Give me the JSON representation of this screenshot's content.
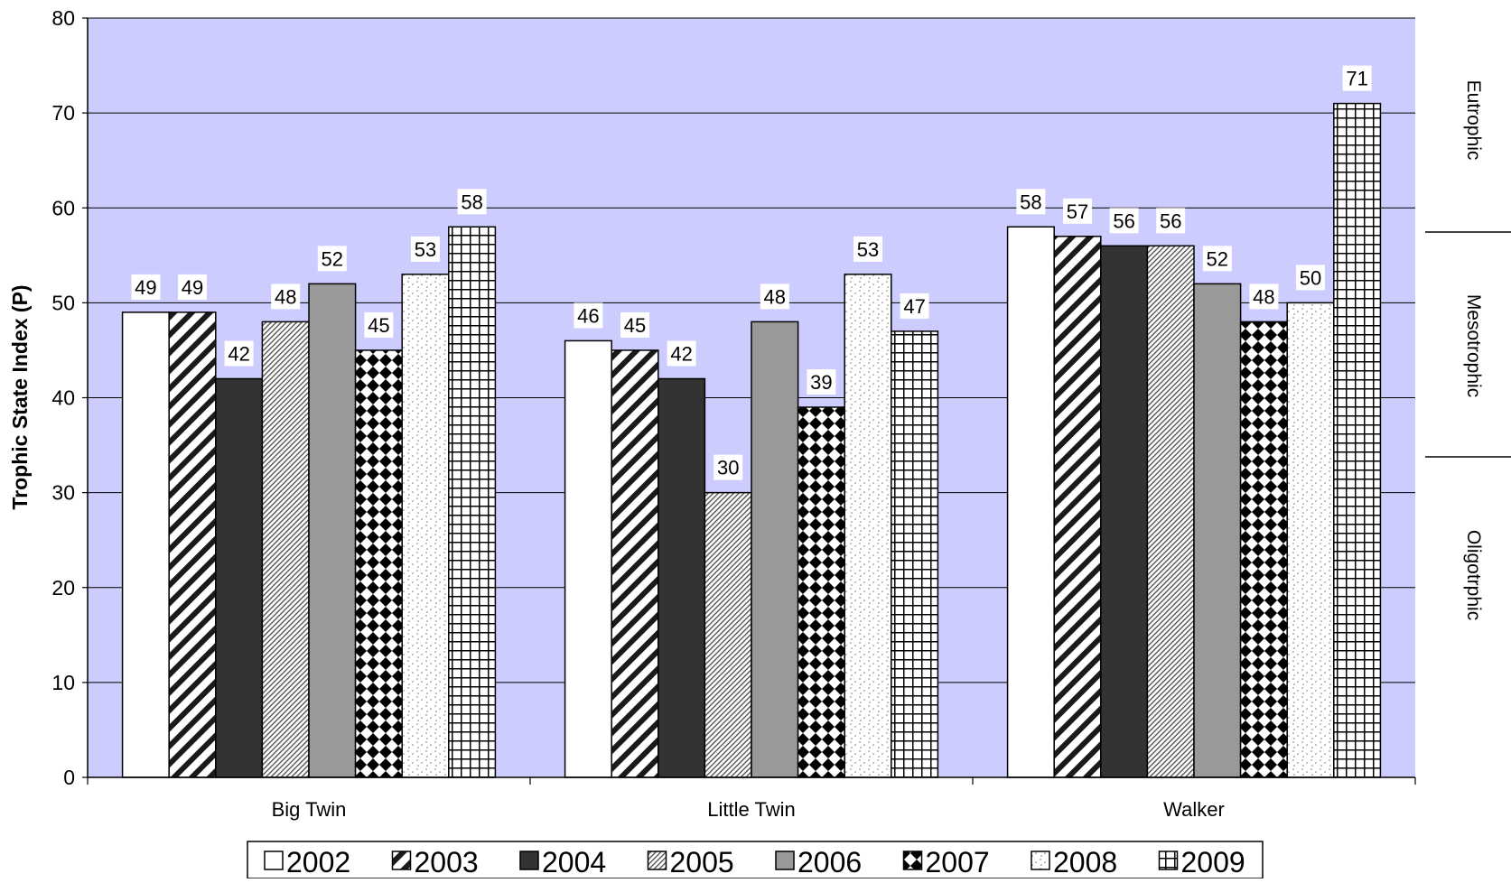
{
  "chart_data": {
    "type": "bar",
    "title": "",
    "xlabel": "",
    "ylabel": "Trophic State Index (P)",
    "ylim": [
      0,
      80
    ],
    "yticks": [
      0,
      10,
      20,
      30,
      40,
      50,
      60,
      70,
      80
    ],
    "grid": true,
    "background_color": "#ccccff",
    "legend_position": "bottom",
    "categories": [
      "Big Twin",
      "Little Twin",
      "Walker"
    ],
    "series": [
      {
        "name": "2002",
        "values": [
          49,
          46,
          58
        ],
        "pattern": "white"
      },
      {
        "name": "2003",
        "values": [
          49,
          45,
          57
        ],
        "pattern": "wide-diagonal"
      },
      {
        "name": "2004",
        "values": [
          42,
          42,
          56
        ],
        "pattern": "dark"
      },
      {
        "name": "2005",
        "values": [
          48,
          30,
          56
        ],
        "pattern": "fine-diagonal"
      },
      {
        "name": "2006",
        "values": [
          52,
          48,
          52
        ],
        "pattern": "gray"
      },
      {
        "name": "2007",
        "values": [
          45,
          39,
          48
        ],
        "pattern": "diamond"
      },
      {
        "name": "2008",
        "values": [
          53,
          53,
          50
        ],
        "pattern": "dotted"
      },
      {
        "name": "2009",
        "values": [
          58,
          47,
          71
        ],
        "pattern": "grid"
      }
    ],
    "annotations": {
      "zones": [
        "Eutrophic",
        "Mesotrophic",
        "Oligotrphic"
      ]
    }
  }
}
